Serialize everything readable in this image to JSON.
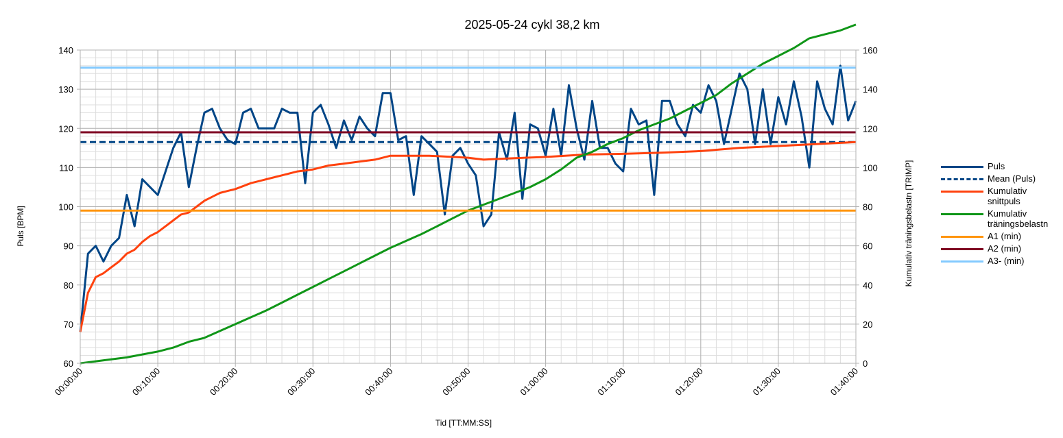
{
  "chart_data": {
    "type": "line",
    "title": "2025-05-24 cykl 38,2 km",
    "xlabel": "Tid [TT:MM:SS]",
    "ylabel": "Puls [BPM]",
    "y2label": "Kumulativ träningsbelastn [TRIMP]",
    "x_range_min": [
      0,
      100
    ],
    "ylim": [
      60,
      140
    ],
    "y2lim": [
      0,
      160
    ],
    "x_ticks": [
      "00:00:00",
      "00:10:00",
      "00:20:00",
      "00:30:00",
      "00:40:00",
      "00:50:00",
      "01:00:00",
      "01:10:00",
      "01:20:00",
      "01:30:00",
      "01:40:00"
    ],
    "y_ticks": [
      "60",
      "70",
      "80",
      "90",
      "100",
      "110",
      "120",
      "130",
      "140"
    ],
    "y2_ticks": [
      "0",
      "20",
      "40",
      "60",
      "80",
      "100",
      "120",
      "140",
      "160"
    ],
    "grid": true,
    "legend_position": "right",
    "series": [
      {
        "name": "Puls",
        "axis": "left",
        "style": "solid",
        "color": "#004586",
        "x": [
          0,
          1,
          2,
          3,
          4,
          5,
          6,
          7,
          8,
          10,
          12,
          13,
          14,
          15,
          16,
          17,
          18,
          19,
          20,
          21,
          22,
          23,
          24,
          25,
          26,
          27,
          28,
          29,
          30,
          31,
          32,
          33,
          34,
          35,
          36,
          37,
          38,
          39,
          40,
          41,
          42,
          43,
          44,
          45,
          46,
          47,
          48,
          49,
          50,
          51,
          52,
          53,
          54,
          55,
          56,
          57,
          58,
          59,
          60,
          61,
          62,
          63,
          64,
          65,
          66,
          67,
          68,
          69,
          70,
          71,
          72,
          73,
          74,
          75,
          76,
          77,
          78,
          79,
          80,
          81,
          82,
          83,
          84,
          85,
          86,
          87,
          88,
          89,
          90,
          91,
          92,
          93,
          94,
          95,
          96,
          97,
          98,
          99,
          100
        ],
        "values": [
          68,
          88,
          90,
          86,
          90,
          92,
          103,
          95,
          107,
          103,
          115,
          119,
          105,
          115,
          124,
          125,
          120,
          117,
          116,
          124,
          125,
          120,
          120,
          120,
          125,
          124,
          124,
          106,
          124,
          126,
          121,
          115,
          122,
          117,
          123,
          120,
          118,
          129,
          129,
          117,
          118,
          103,
          118,
          116,
          114,
          98,
          113,
          115,
          111,
          108,
          95,
          98,
          119,
          112,
          124,
          102,
          121,
          120,
          113,
          125,
          113,
          131,
          120,
          112,
          127,
          115,
          115,
          111,
          109,
          125,
          121,
          122,
          103,
          127,
          127,
          121,
          118,
          126,
          124,
          131,
          127,
          116,
          125,
          134,
          130,
          116,
          130,
          116,
          128,
          121,
          132,
          123,
          110,
          132,
          125,
          121,
          136,
          122,
          127
        ]
      },
      {
        "name": "Mean (Puls)",
        "axis": "left",
        "style": "dashed",
        "color": "#004586",
        "x": [
          0,
          100
        ],
        "values": [
          116.5,
          116.5
        ]
      },
      {
        "name": "Kumulativ snittpuls",
        "axis": "left",
        "style": "solid",
        "color": "#ff420e",
        "x": [
          0,
          1,
          2,
          3,
          4,
          5,
          6,
          7,
          8,
          9,
          10,
          11,
          12,
          13,
          14,
          15,
          16,
          17,
          18,
          19,
          20,
          22,
          24,
          26,
          28,
          30,
          32,
          34,
          36,
          38,
          40,
          42,
          45,
          50,
          52,
          55,
          60,
          65,
          70,
          75,
          80,
          85,
          90,
          95,
          100
        ],
        "values": [
          68,
          78,
          82,
          83,
          84.5,
          86,
          88,
          89,
          91,
          92.5,
          93.5,
          95,
          96.5,
          98,
          98.5,
          100,
          101.5,
          102.5,
          103.5,
          104,
          104.5,
          106,
          107,
          108,
          109,
          109.5,
          110.5,
          111,
          111.5,
          112,
          113,
          113,
          113,
          112.5,
          112,
          112.3,
          112.7,
          113.3,
          113.5,
          113.8,
          114.2,
          115,
          115.5,
          116,
          116.5
        ]
      },
      {
        "name": "Kumulativ träningsbelastn",
        "axis": "right",
        "style": "solid",
        "color": "#109618",
        "x": [
          0,
          2,
          4,
          6,
          8,
          10,
          12,
          14,
          16,
          18,
          20,
          22,
          24,
          26,
          28,
          30,
          32,
          34,
          36,
          38,
          40,
          42,
          44,
          46,
          48,
          50,
          52,
          54,
          56,
          58,
          60,
          62,
          64,
          66,
          68,
          70,
          72,
          74,
          76,
          78,
          80,
          82,
          84,
          86,
          88,
          90,
          92,
          94,
          96,
          98,
          100
        ],
        "values": [
          0,
          1,
          2,
          3,
          4.5,
          6,
          8,
          11,
          13,
          16.5,
          20,
          23.5,
          27,
          31,
          35,
          39,
          43,
          47,
          51,
          55,
          59,
          62.5,
          66,
          70,
          74,
          78,
          81,
          84,
          87,
          90,
          94,
          99,
          105,
          108,
          112,
          115,
          119,
          122,
          125,
          129,
          133,
          137,
          143,
          148,
          153,
          157,
          161,
          166,
          168,
          170,
          173
        ]
      },
      {
        "name": "A1 (min)",
        "axis": "left",
        "style": "solid",
        "color": "#ff950e",
        "x": [
          0,
          100
        ],
        "values": [
          99,
          99
        ]
      },
      {
        "name": "A2 (min)",
        "axis": "left",
        "style": "solid",
        "color": "#7e0021",
        "x": [
          0,
          100
        ],
        "values": [
          119,
          119
        ]
      },
      {
        "name": "A3- (min)",
        "axis": "left",
        "style": "solid",
        "color": "#83caff",
        "x": [
          0,
          100
        ],
        "values": [
          135.5,
          135.5
        ]
      }
    ],
    "legend": [
      {
        "label": "Puls",
        "color": "#004586",
        "style": "solid"
      },
      {
        "label": "Mean (Puls)",
        "color": "#004586",
        "style": "dashed"
      },
      {
        "label": "Kumulativ snittpuls",
        "color": "#ff420e",
        "style": "solid"
      },
      {
        "label": "Kumulativ träningsbelastn",
        "color": "#109618",
        "style": "solid"
      },
      {
        "label": "A1 (min)",
        "color": "#ff950e",
        "style": "solid"
      },
      {
        "label": "A2 (min)",
        "color": "#7e0021",
        "style": "solid"
      },
      {
        "label": "A3- (min)",
        "color": "#83caff",
        "style": "solid"
      }
    ]
  }
}
